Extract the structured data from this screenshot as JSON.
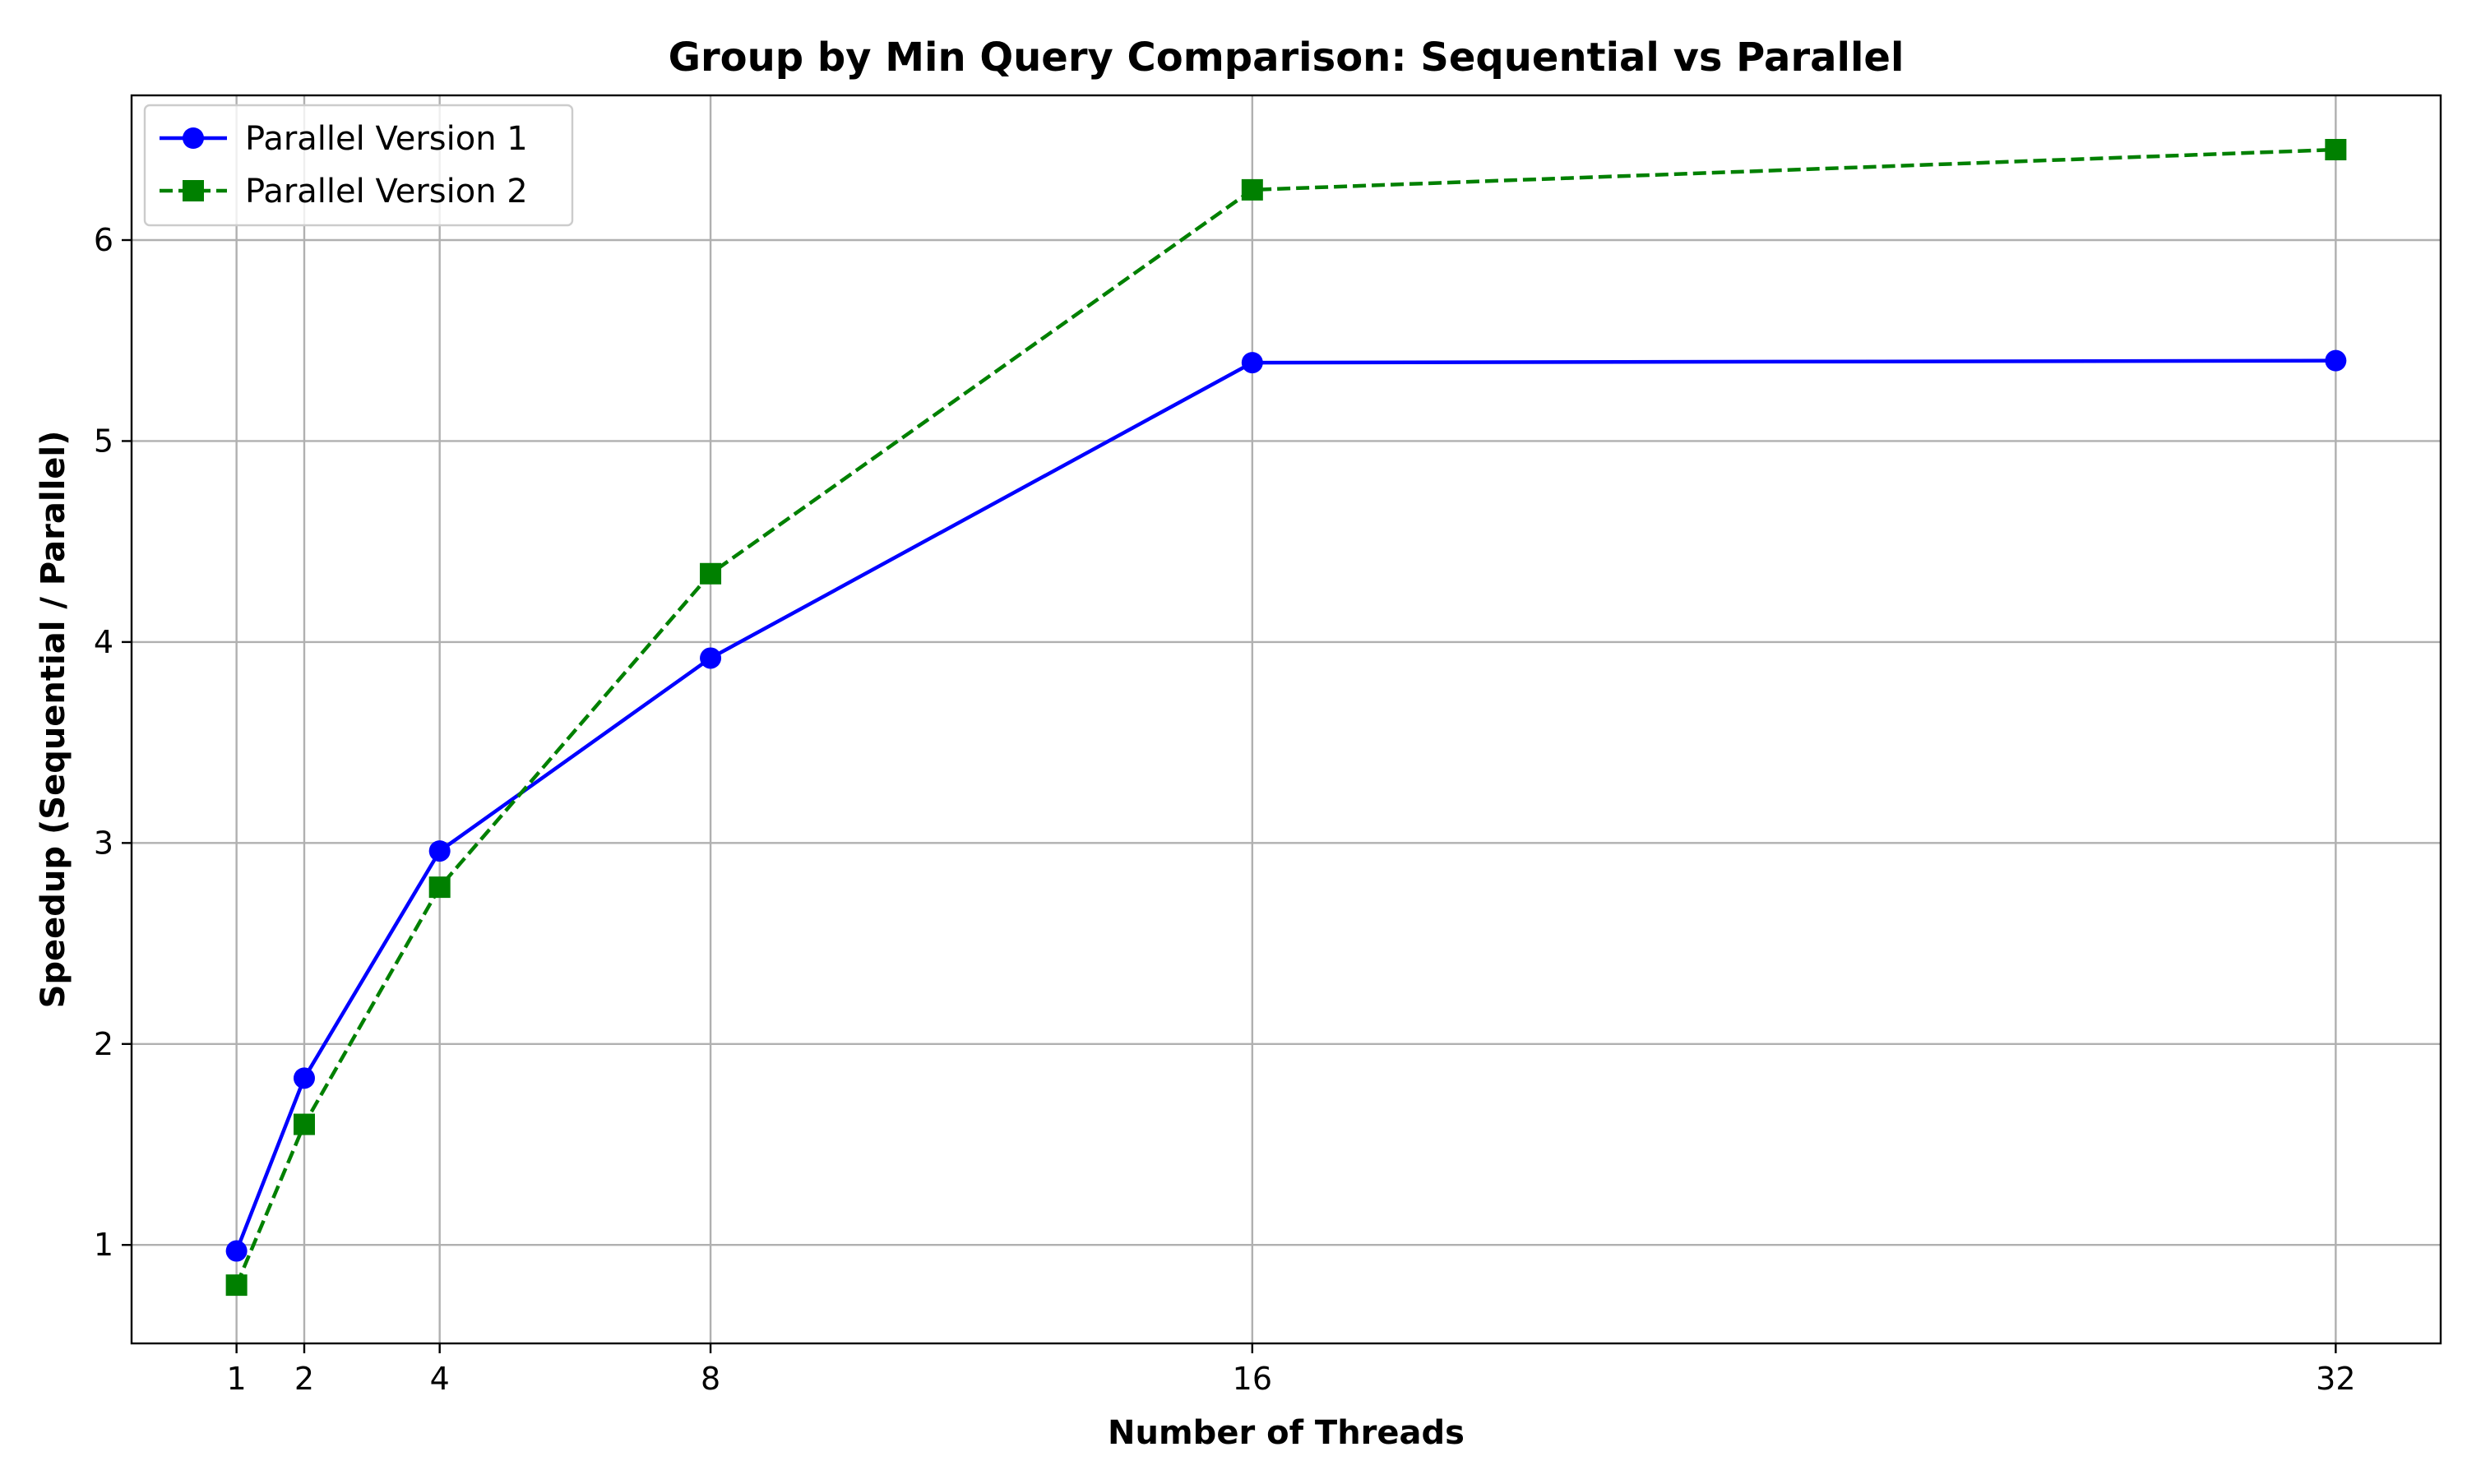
{
  "chart_data": {
    "type": "line",
    "title": "Group by Min Query Comparison: Sequential vs Parallel",
    "xlabel": "Number of Threads",
    "ylabel": "Speedup (Sequential / Parallel)",
    "x": [
      1,
      2,
      4,
      8,
      16,
      32
    ],
    "xticks": [
      "1",
      "2",
      "4",
      "8",
      "16",
      "32"
    ],
    "yticks": [
      "1",
      "2",
      "3",
      "4",
      "5",
      "6"
    ],
    "xlim": [
      -0.55,
      33.55
    ],
    "ylim": [
      0.51,
      6.72
    ],
    "grid": true,
    "legend_position": "top-left",
    "series": [
      {
        "name": "Parallel Version 1",
        "values": [
          0.97,
          1.83,
          2.96,
          3.92,
          5.39,
          5.4
        ],
        "color": "#0000ff",
        "marker": "circle",
        "linestyle": "solid"
      },
      {
        "name": "Parallel Version 2",
        "values": [
          0.8,
          1.6,
          2.78,
          4.34,
          6.25,
          6.45
        ],
        "color": "#008000",
        "marker": "square",
        "linestyle": "dashed"
      }
    ]
  }
}
